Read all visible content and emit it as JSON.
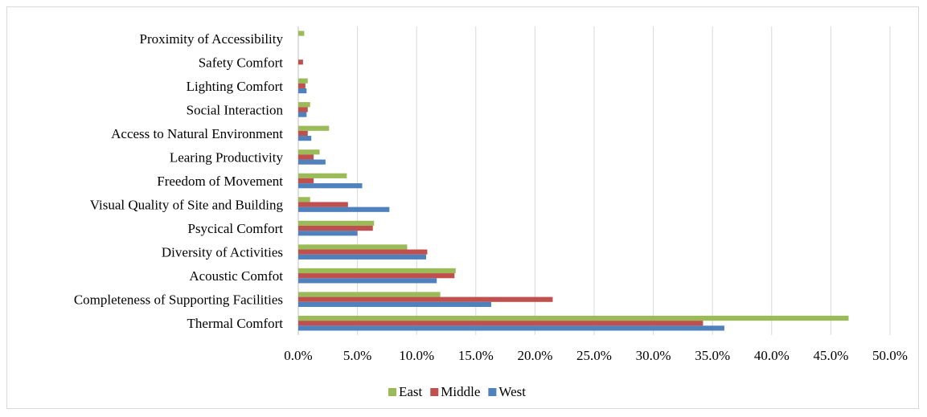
{
  "chart_data": {
    "type": "bar",
    "orientation": "horizontal",
    "title": "",
    "xlabel": "",
    "ylabel": "",
    "xlim": [
      0,
      50
    ],
    "x_ticks": [
      "0.0%",
      "5.0%",
      "10.0%",
      "15.0%",
      "20.0%",
      "25.0%",
      "30.0%",
      "35.0%",
      "40.0%",
      "45.0%",
      "50.0%"
    ],
    "grid": "vertical",
    "legend_position": "bottom",
    "categories": [
      "Proximity of Accessibility",
      "Safety Comfort",
      "Lighting Comfort",
      "Social Interaction",
      "Access to Natural Environment",
      "Learing Productivity",
      "Freedom of Movement",
      "Visual Quality of Site and Building",
      "Psycical Comfort",
      "Diversity of Activities",
      "Acoustic Comfot",
      "Completeness of Supporting Facilities",
      "Thermal Comfort"
    ],
    "series": [
      {
        "name": "East",
        "color": "#9bbb59",
        "values": [
          0.5,
          0.0,
          0.8,
          1.0,
          2.6,
          1.8,
          4.1,
          1.0,
          6.4,
          9.2,
          13.3,
          12.0,
          46.5
        ]
      },
      {
        "name": "Middle",
        "color": "#c0504d",
        "values": [
          0.0,
          0.4,
          0.6,
          0.8,
          0.8,
          1.3,
          1.3,
          4.2,
          6.3,
          10.9,
          13.2,
          21.5,
          34.2
        ]
      },
      {
        "name": "West",
        "color": "#4f81bd",
        "values": [
          0.0,
          0.0,
          0.7,
          0.7,
          1.1,
          2.3,
          5.4,
          7.7,
          5.0,
          10.8,
          11.7,
          16.3,
          36.0
        ]
      }
    ]
  }
}
